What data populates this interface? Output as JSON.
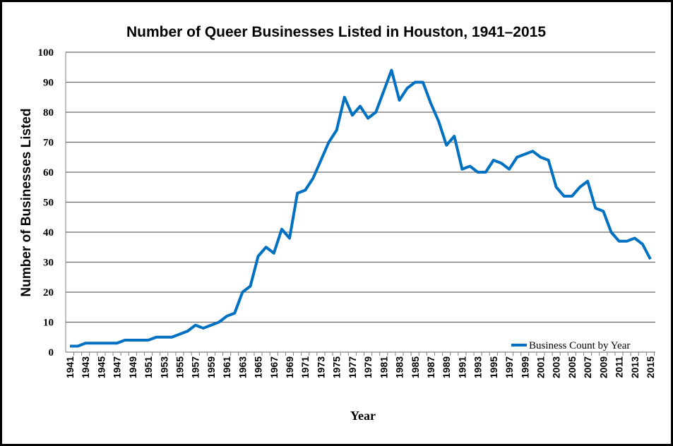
{
  "chart_data": {
    "type": "line",
    "title": "Number of Queer Businesses Listed in Houston, 1941–2015",
    "xlabel": "Year",
    "ylabel": "Number of Businesses Listed",
    "ylim": [
      0,
      100
    ],
    "yticks": [
      0,
      10,
      20,
      30,
      40,
      50,
      60,
      70,
      80,
      90,
      100
    ],
    "grid": true,
    "legend_position": "bottom-right",
    "x_start": 1941,
    "x_end": 2015,
    "series": [
      {
        "name": "Business Count by Year",
        "color": "#0070C0",
        "values": [
          2,
          2,
          3,
          3,
          3,
          3,
          3,
          4,
          4,
          4,
          4,
          5,
          5,
          5,
          6,
          7,
          9,
          8,
          9,
          10,
          12,
          13,
          20,
          22,
          32,
          35,
          33,
          41,
          38,
          53,
          54,
          58,
          64,
          70,
          74,
          85,
          79,
          82,
          78,
          80,
          87,
          94,
          84,
          88,
          90,
          90,
          83,
          77,
          69,
          72,
          61,
          62,
          60,
          60,
          64,
          63,
          61,
          65,
          66,
          67,
          65,
          64,
          55,
          52,
          52,
          55,
          57,
          48,
          47,
          40,
          37,
          37,
          38,
          36,
          31
        ]
      }
    ]
  }
}
